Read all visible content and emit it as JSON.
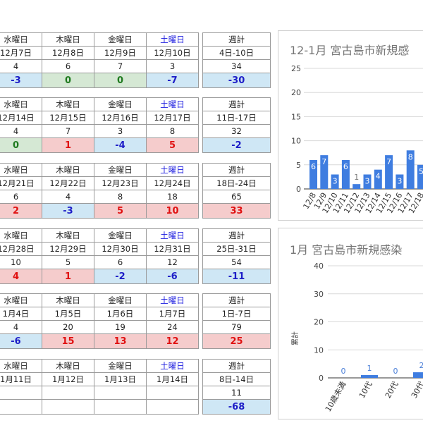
{
  "weeks": [
    {
      "headers": [
        "水曜日",
        "木曜日",
        "金曜日",
        "土曜日"
      ],
      "dates": [
        "12月7日",
        "12月8日",
        "12月9日",
        "12月10日"
      ],
      "counts": [
        "4",
        "6",
        "7",
        "3"
      ],
      "deltas": [
        "-3",
        "0",
        "0",
        "-7"
      ],
      "delta_bg": [
        "blue",
        "green",
        "green",
        "blue"
      ],
      "delta_color": [
        "blue",
        "green",
        "green",
        "blue"
      ],
      "total": {
        "header": "週計",
        "range": "4日-10日",
        "count": "34",
        "delta": "-30",
        "bg": "blue",
        "color": "blue"
      }
    },
    {
      "headers": [
        "水曜日",
        "木曜日",
        "金曜日",
        "土曜日"
      ],
      "dates": [
        "12月14日",
        "12月15日",
        "12月16日",
        "12月17日"
      ],
      "counts": [
        "4",
        "7",
        "3",
        "8"
      ],
      "deltas": [
        "0",
        "1",
        "-4",
        "5"
      ],
      "delta_bg": [
        "green",
        "red",
        "blue",
        "red"
      ],
      "delta_color": [
        "green",
        "red",
        "blue",
        "red"
      ],
      "total": {
        "header": "週計",
        "range": "11日-17日",
        "count": "32",
        "delta": "-2",
        "bg": "blue",
        "color": "blue"
      }
    },
    {
      "headers": [
        "水曜日",
        "木曜日",
        "金曜日",
        "土曜日"
      ],
      "dates": [
        "12月21日",
        "12月22日",
        "12月23日",
        "12月24日"
      ],
      "counts": [
        "6",
        "4",
        "8",
        "18"
      ],
      "deltas": [
        "2",
        "-3",
        "5",
        "10"
      ],
      "delta_bg": [
        "red",
        "blue",
        "red",
        "red"
      ],
      "delta_color": [
        "red",
        "blue",
        "red",
        "red"
      ],
      "total": {
        "header": "週計",
        "range": "18日-24日",
        "count": "65",
        "delta": "33",
        "bg": "red",
        "color": "red"
      }
    },
    {
      "headers": [
        "水曜日",
        "木曜日",
        "金曜日",
        "土曜日"
      ],
      "dates": [
        "12月28日",
        "12月29日",
        "12月30日",
        "12月31日"
      ],
      "counts": [
        "10",
        "5",
        "6",
        "12"
      ],
      "deltas": [
        "4",
        "1",
        "-2",
        "-6"
      ],
      "delta_bg": [
        "red",
        "red",
        "blue",
        "blue"
      ],
      "delta_color": [
        "red",
        "red",
        "blue",
        "blue"
      ],
      "total": {
        "header": "週計",
        "range": "25日-31日",
        "count": "54",
        "delta": "-11",
        "bg": "blue",
        "color": "blue"
      }
    },
    {
      "headers": [
        "水曜日",
        "木曜日",
        "金曜日",
        "土曜日"
      ],
      "dates": [
        "1月4日",
        "1月5日",
        "1月6日",
        "1月7日"
      ],
      "counts": [
        "4",
        "20",
        "19",
        "24"
      ],
      "deltas": [
        "-6",
        "15",
        "13",
        "12"
      ],
      "delta_bg": [
        "blue",
        "red",
        "red",
        "red"
      ],
      "delta_color": [
        "blue",
        "red",
        "red",
        "red"
      ],
      "total": {
        "header": "週計",
        "range": "1日-7日",
        "count": "79",
        "delta": "25",
        "bg": "red",
        "color": "red"
      }
    },
    {
      "headers": [
        "水曜日",
        "木曜日",
        "金曜日",
        "土曜日"
      ],
      "dates": [
        "1月11日",
        "1月12日",
        "1月13日",
        "1月14日"
      ],
      "counts": [
        "",
        "",
        "",
        ""
      ],
      "deltas": [
        "",
        "",
        "",
        ""
      ],
      "delta_bg": [
        "",
        "",
        "",
        ""
      ],
      "delta_color": [
        "",
        "",
        "",
        ""
      ],
      "total": {
        "header": "週計",
        "range": "8日-14日",
        "count": "11",
        "delta": "-68",
        "bg": "blue",
        "color": "blue"
      }
    }
  ],
  "colors": {
    "bar": "#3f7de0",
    "sat_header": "#1a1adf",
    "red_bg": "#f5cccc",
    "blue_bg": "#cfe7f5",
    "green_bg": "#d5e8d4"
  },
  "chart_data": [
    {
      "type": "bar",
      "title": "12-1月 宮古島市新規感",
      "categories": [
        "12/8",
        "12/9",
        "12/10",
        "12/11",
        "12/12",
        "12/13",
        "12/14",
        "12/15",
        "12/16",
        "12/17",
        "12/18"
      ],
      "values": [
        6,
        7,
        3,
        6,
        1,
        3,
        4,
        7,
        3,
        8,
        5
      ],
      "data_labels": [
        "6",
        "7",
        "3",
        "6",
        "1",
        "3",
        "4",
        "7",
        "3",
        "8",
        "5"
      ],
      "yticks": [
        "25",
        "20",
        "15",
        "10",
        "5",
        "0"
      ],
      "ylim": [
        0,
        25
      ],
      "grid": true
    },
    {
      "type": "bar",
      "title": "1月 宮古島市新規感染",
      "ylabel": "累計",
      "categories": [
        "10歳未満",
        "10代",
        "20代",
        "30代"
      ],
      "values": [
        0,
        1,
        0,
        2
      ],
      "data_labels": [
        "0",
        "1",
        "0",
        "2"
      ],
      "yticks": [
        "40",
        "30",
        "20",
        "10",
        "0"
      ],
      "ylim": [
        0,
        40
      ],
      "grid": true
    }
  ]
}
